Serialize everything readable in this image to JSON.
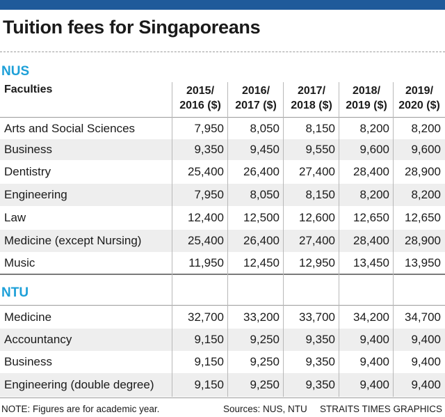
{
  "title": "Tuition fees for Singaporeans",
  "header": {
    "faculties_label": "Faculties",
    "years": [
      [
        "2015/",
        "2016 ($)"
      ],
      [
        "2016/",
        "2017 ($)"
      ],
      [
        "2017/",
        "2018 ($)"
      ],
      [
        "2018/",
        "2019 ($)"
      ],
      [
        "2019/",
        "2020 ($)"
      ]
    ]
  },
  "sections": [
    {
      "name": "NUS",
      "rows": [
        {
          "faculty": "Arts and Social Sciences",
          "fees": [
            "7,950",
            "8,050",
            "8,150",
            "8,200",
            "8,200"
          ]
        },
        {
          "faculty": "Business",
          "fees": [
            "9,350",
            "9,450",
            "9,550",
            "9,600",
            "9,600"
          ]
        },
        {
          "faculty": "Dentistry",
          "fees": [
            "25,400",
            "26,400",
            "27,400",
            "28,400",
            "28,900"
          ]
        },
        {
          "faculty": "Engineering",
          "fees": [
            "7,950",
            "8,050",
            "8,150",
            "8,200",
            "8,200"
          ]
        },
        {
          "faculty": "Law",
          "fees": [
            "12,400",
            "12,500",
            "12,600",
            "12,650",
            "12,650"
          ]
        },
        {
          "faculty": "Medicine (except Nursing)",
          "fees": [
            "25,400",
            "26,400",
            "27,400",
            "28,400",
            "28,900"
          ]
        },
        {
          "faculty": "Music",
          "fees": [
            "11,950",
            "12,450",
            "12,950",
            "13,450",
            "13,950"
          ]
        }
      ]
    },
    {
      "name": "NTU",
      "rows": [
        {
          "faculty": "Medicine",
          "fees": [
            "32,700",
            "33,200",
            "33,700",
            "34,200",
            "34,700"
          ]
        },
        {
          "faculty": "Accountancy",
          "fees": [
            "9,150",
            "9,250",
            "9,350",
            "9,400",
            "9,400"
          ]
        },
        {
          "faculty": "Business",
          "fees": [
            "9,150",
            "9,250",
            "9,350",
            "9,400",
            "9,400"
          ]
        },
        {
          "faculty": "Engineering (double degree)",
          "fees": [
            "9,150",
            "9,250",
            "9,350",
            "9,400",
            "9,400"
          ]
        }
      ]
    }
  ],
  "footer": {
    "note": "NOTE: Figures are for academic year.",
    "sources": "Sources: NUS, NTU",
    "credit": "STRAITS TIMES GRAPHICS"
  },
  "colors": {
    "top_bar": "#1f5a9a",
    "section_heading": "#1ea0d8",
    "row_shade": "#eeeeee"
  }
}
